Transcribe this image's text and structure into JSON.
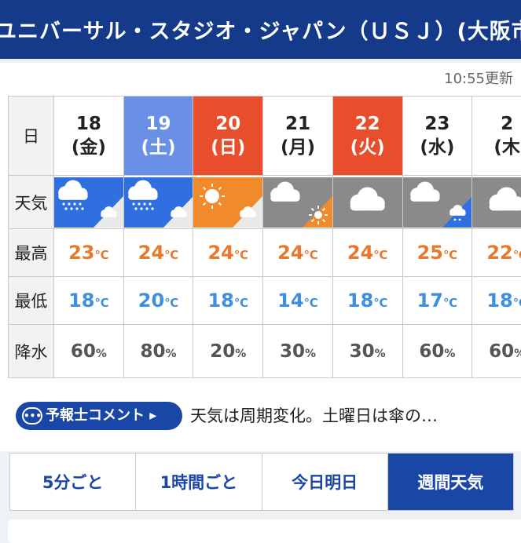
{
  "header": {
    "title": "ユニバーサル・スタジオ・ジャパン（ＵＳＪ）(大阪市"
  },
  "updated": "10:55更新",
  "labels": {
    "day": "日",
    "weather": "天気",
    "high": "最高",
    "low": "最低",
    "precip": "降水"
  },
  "temp_unit": "℃",
  "pct_unit": "%",
  "days": [
    {
      "date": "18",
      "dow": "(金)",
      "type": "weekday",
      "hi": "23",
      "lo": "18",
      "precip": "60",
      "icon": "rain-then-cloud"
    },
    {
      "date": "19",
      "dow": "(土)",
      "type": "sat",
      "hi": "24",
      "lo": "20",
      "precip": "80",
      "icon": "rain-then-cloud"
    },
    {
      "date": "20",
      "dow": "(日)",
      "type": "sun",
      "hi": "24",
      "lo": "18",
      "precip": "20",
      "icon": "sun-then-cloud"
    },
    {
      "date": "21",
      "dow": "(月)",
      "type": "weekday",
      "hi": "24",
      "lo": "14",
      "precip": "30",
      "icon": "cloud-then-sun"
    },
    {
      "date": "22",
      "dow": "(火)",
      "type": "hol",
      "hi": "24",
      "lo": "18",
      "precip": "30",
      "icon": "cloud"
    },
    {
      "date": "23",
      "dow": "(水)",
      "type": "weekday",
      "hi": "25",
      "lo": "17",
      "precip": "60",
      "icon": "cloud-then-rain"
    },
    {
      "date": "2",
      "dow": "(木",
      "type": "weekday",
      "hi": "22",
      "lo": "18",
      "precip": "60",
      "icon": "cloud"
    }
  ],
  "comment": {
    "button": "予報士コメント",
    "text": "天気は周期変化。土曜日は傘の…"
  },
  "tabs": [
    {
      "label": "5分ごと",
      "active": false
    },
    {
      "label": "1時間ごと",
      "active": false
    },
    {
      "label": "今日明日",
      "active": false
    },
    {
      "label": "週間天気",
      "active": true
    }
  ],
  "colors": {
    "header": "#163a8a",
    "saturday": "#6a8fe6",
    "sunday": "#e84e2c",
    "rain": "#2f6fe0",
    "sun": "#f08a2a",
    "cloud": "#8a8a8a",
    "high": "#e8782c",
    "low": "#3f8fe0"
  }
}
